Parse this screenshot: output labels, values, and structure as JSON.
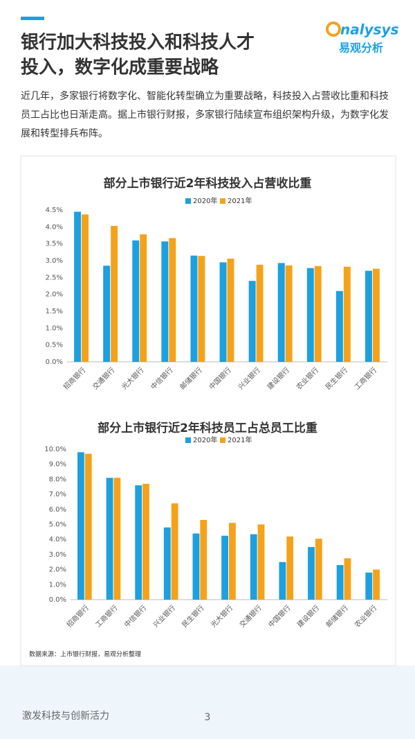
{
  "header": {
    "title_lines": [
      "银行加大科技投入和科技人才",
      "投入，数字化成重要战略"
    ],
    "logo_word": "nalysys",
    "logo_name": "易观分析"
  },
  "body": {
    "paragraph": "近几年，多家银行将数字化、智能化转型确立为重要战略，科技投入占营收比重和科技员工占比也日渐走高。据上市银行财报，多家银行陆续宣布组织架构升级，为数字化发展和转型排兵布阵。",
    "source": "数据来源：上市银行财报，易观分析整理"
  },
  "footer": {
    "text": "激发科技与创新活力",
    "page": "3"
  },
  "chart_data": [
    {
      "type": "bar",
      "title": "部分上市银行近2年科技投入占营收比重",
      "categories": [
        "招商银行",
        "交通银行",
        "光大银行",
        "中信银行",
        "邮储银行",
        "中国银行",
        "兴业银行",
        "建设银行",
        "农业银行",
        "民生银行",
        "工商银行"
      ],
      "series": [
        {
          "name": "2020年",
          "color": "#1ca0e0",
          "values": [
            4.45,
            2.85,
            3.6,
            3.57,
            3.15,
            2.95,
            2.4,
            2.93,
            2.78,
            2.1,
            2.7
          ]
        },
        {
          "name": "2021年",
          "color": "#f5a21b",
          "values": [
            4.37,
            4.03,
            3.78,
            3.67,
            3.14,
            3.06,
            2.88,
            2.86,
            2.84,
            2.82,
            2.76
          ]
        }
      ],
      "ylim": [
        0,
        4.5
      ],
      "yticks": [
        {
          "value": 0,
          "label": "0.0%"
        },
        {
          "value": 0.5,
          "label": "0.5%"
        },
        {
          "value": 1,
          "label": "1.0%"
        },
        {
          "value": 1.5,
          "label": "1.5%"
        },
        {
          "value": 2,
          "label": "2.0%"
        },
        {
          "value": 2.5,
          "label": "2.5%"
        },
        {
          "value": 3,
          "label": "3.0%"
        },
        {
          "value": 3.5,
          "label": "3.5%"
        },
        {
          "value": 4,
          "label": "4.0%"
        },
        {
          "value": 4.5,
          "label": "4.5%"
        }
      ],
      "grid": false
    },
    {
      "type": "bar",
      "title": "部分上市银行近2年科技员工占总员工比重",
      "categories": [
        "招商银行",
        "工商银行",
        "中信银行",
        "兴业银行",
        "民生银行",
        "光大银行",
        "交通银行",
        "中国银行",
        "建设银行",
        "邮储银行",
        "农业银行"
      ],
      "series": [
        {
          "name": "2020年",
          "color": "#1ca0e0",
          "values": [
            9.8,
            8.1,
            7.6,
            4.8,
            4.4,
            4.25,
            4.35,
            2.5,
            3.5,
            2.3,
            1.8
          ]
        },
        {
          "name": "2021年",
          "color": "#f5a21b",
          "values": [
            9.7,
            8.1,
            7.7,
            6.4,
            5.3,
            5.1,
            5.0,
            4.2,
            4.05,
            2.75,
            2.0
          ]
        }
      ],
      "ylim": [
        0,
        10
      ],
      "yticks": [
        {
          "value": 0,
          "label": "0.0%"
        },
        {
          "value": 1,
          "label": "1.0%"
        },
        {
          "value": 2,
          "label": "2.0%"
        },
        {
          "value": 3,
          "label": "3.0%"
        },
        {
          "value": 4,
          "label": "4.0%"
        },
        {
          "value": 5,
          "label": "5.0%"
        },
        {
          "value": 6,
          "label": "6.0%"
        },
        {
          "value": 7,
          "label": "7.0%"
        },
        {
          "value": 8,
          "label": "8.0%"
        },
        {
          "value": 9,
          "label": "9.0%"
        },
        {
          "value": 10,
          "label": "10.0%"
        }
      ],
      "grid": false
    }
  ]
}
